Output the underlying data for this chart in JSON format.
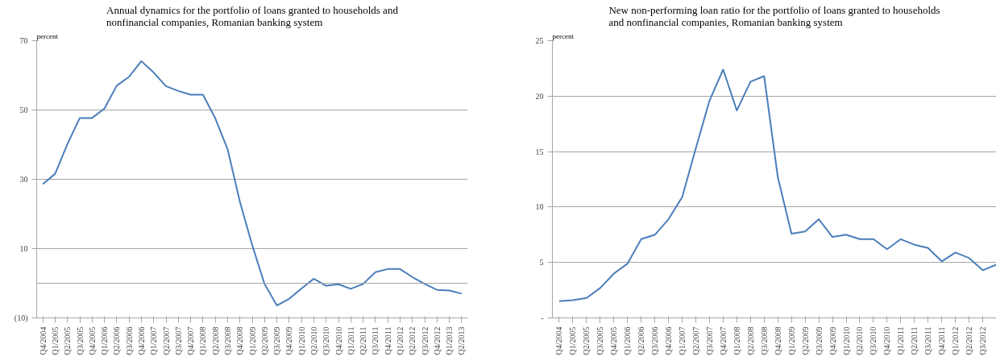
{
  "chart_data": [
    {
      "type": "line",
      "title": "Annual dynamics for the portfolio of loans granted to households and\nnonfinancial companies, Romanian banking system",
      "ylabel": "percent",
      "categories": [
        "Q4/2004",
        "Q1/2005",
        "Q2/2005",
        "Q3/2005",
        "Q4/2005",
        "Q1/2006",
        "Q2/2006",
        "Q3/2006",
        "Q4/2006",
        "Q1/2007",
        "Q2/2007",
        "Q3/2007",
        "Q4/2007",
        "Q1/2008",
        "Q2/2008",
        "Q3/2008",
        "Q4/2008",
        "Q1/2009",
        "Q2/2009",
        "Q3/2009",
        "Q4/2009",
        "Q1/2010",
        "Q2/2010",
        "Q3/2010",
        "Q4/2010",
        "Q1/2011",
        "Q2/2011",
        "Q3/2011",
        "Q4/2011",
        "Q1/2012",
        "Q2/2012",
        "Q3/2012",
        "Q4/2012",
        "Q1/2013",
        "Q2/2013"
      ],
      "series": [
        {
          "color": "#4a7ebb",
          "values": [
            28.6,
            31.6,
            40.2,
            47.7,
            47.7,
            50.4,
            57.0,
            59.6,
            64.1,
            60.8,
            56.9,
            55.5,
            54.4,
            54.4,
            47.6,
            38.7,
            23.5,
            11.0,
            -0.2,
            -6.4,
            -4.5,
            -1.5,
            1.3,
            -0.7,
            -0.3,
            -1.6,
            -0.2,
            3.2,
            4.1,
            4.1,
            1.8,
            -0.2,
            -1.9,
            -2.1,
            -3.0
          ]
        }
      ],
      "ylim": [
        -10,
        70
      ],
      "yticks": [
        70,
        50,
        30,
        10,
        {
          "value": -10,
          "label": "(10)"
        }
      ],
      "grid": "y",
      "marker": "none",
      "line_style": "solid",
      "ref_lines": [
        {
          "axis": "y",
          "value": 0,
          "label": null,
          "color": "#a6a6a6"
        }
      ]
    },
    {
      "type": "line",
      "title": "New non-performing loan ratio for the portfolio of loans granted to households\nand nonfinancial companies, Romanian banking system",
      "ylabel": "percent",
      "categories": [
        "Q4/2004",
        "Q1/2005",
        "Q2/2005",
        "Q3/2005",
        "Q4/2005",
        "Q1/2006",
        "Q2/2006",
        "Q3/2006",
        "Q4/2006",
        "Q1/2007",
        "Q2/2007",
        "Q3/2007",
        "Q4/2007",
        "Q1/2008",
        "Q2/2008",
        "Q3/2008",
        "Q4/2008",
        "Q1/2009",
        "Q2/2009",
        "Q3/2009",
        "Q4/2009",
        "Q1/2010",
        "Q2/2010",
        "Q3/2010",
        "Q4/2010",
        "Q1/2011",
        "Q2/2011",
        "Q3/2011",
        "Q4/2011",
        "Q1/2012",
        "Q2/2012",
        "Q3/2012",
        null
      ],
      "series": [
        {
          "color": "#4a7ebb",
          "values": [
            1.5,
            1.6,
            1.8,
            2.7,
            4.0,
            4.9,
            7.1,
            7.5,
            8.9,
            10.9,
            15.3,
            19.6,
            22.4,
            18.7,
            21.3,
            21.8,
            12.7,
            7.6,
            7.8,
            8.9,
            7.3,
            7.5,
            7.1,
            7.1,
            6.2,
            7.1,
            6.6,
            6.3,
            5.1,
            5.9,
            5.4,
            4.3,
            4.8
          ]
        }
      ],
      "ylim": [
        0,
        25
      ],
      "yticks": [
        25,
        20,
        15,
        10,
        5,
        {
          "value": 0,
          "label": "-"
        }
      ],
      "grid": "y",
      "marker": "none",
      "line_style": "solid"
    }
  ]
}
